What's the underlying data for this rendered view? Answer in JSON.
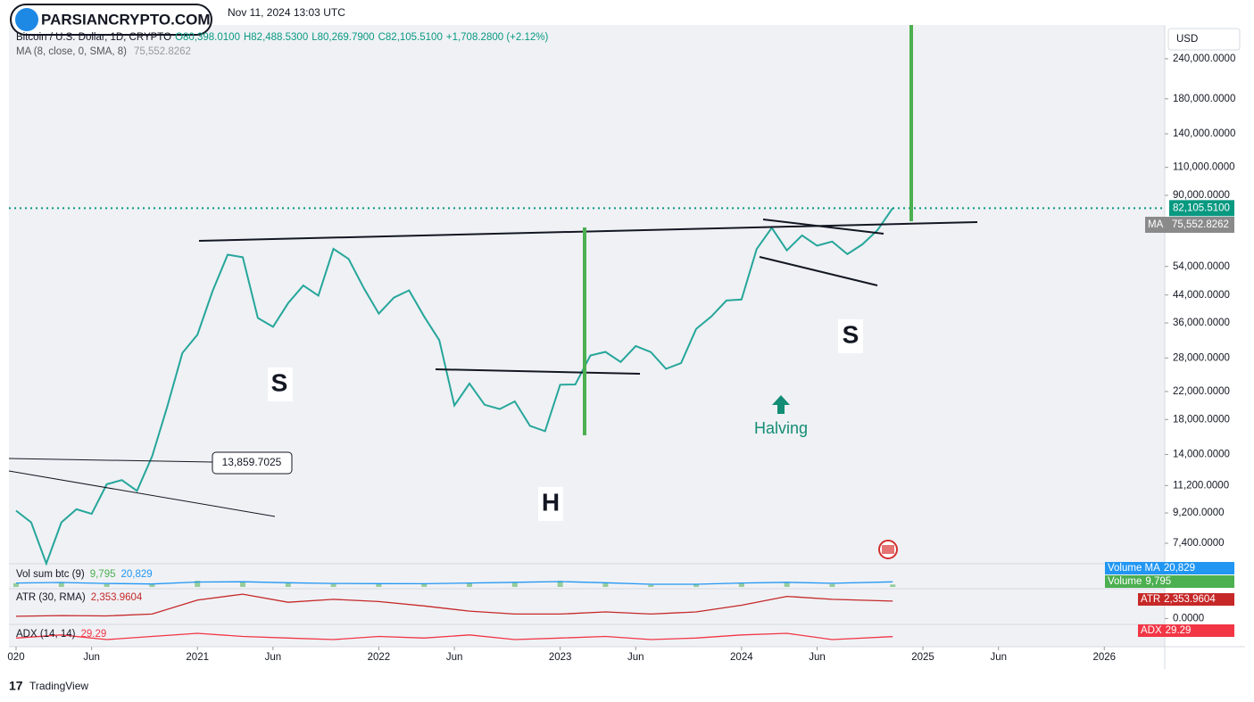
{
  "header": {
    "watermark": "PARSIANCRYPTO.COM",
    "timestamp": "Nov 11, 2024 13:03 UTC"
  },
  "chart_data": [
    {
      "type": "line",
      "log_scale": true,
      "grid": false,
      "currency": "USD",
      "ohlc": [
        "O80,398.0100",
        "H82,488.5300",
        "L80,269.7900",
        "C82,105.5100",
        "+1,708.2800 (+2.12%)"
      ],
      "indicator": {
        "name": "MA (8, close, 0, SMA, 8)",
        "short": "MA",
        "value_label": "75,552.8262"
      },
      "x": [
        "2020-01",
        "2020-02",
        "2020-03",
        "2020-04",
        "2020-05",
        "2020-06",
        "2020-07",
        "2020-08",
        "2020-09",
        "2020-10",
        "2020-11",
        "2020-12",
        "2021-01",
        "2021-02",
        "2021-03",
        "2021-04",
        "2021-05",
        "2021-06",
        "2021-07",
        "2021-08",
        "2021-09",
        "2021-10",
        "2021-11",
        "2021-12",
        "2022-01",
        "2022-02",
        "2022-03",
        "2022-04",
        "2022-05",
        "2022-06",
        "2022-07",
        "2022-08",
        "2022-09",
        "2022-10",
        "2022-11",
        "2022-12",
        "2023-01",
        "2023-02",
        "2023-03",
        "2023-04",
        "2023-05",
        "2023-06",
        "2023-07",
        "2023-08",
        "2023-09",
        "2023-10",
        "2023-11",
        "2023-12",
        "2024-01",
        "2024-02",
        "2024-03",
        "2024-04",
        "2024-05",
        "2024-06",
        "2024-07",
        "2024-08",
        "2024-09",
        "2024-10",
        "2024-11"
      ],
      "series": [
        {
          "name": "Bitcoin / U.S. Dollar, 1D, CRYPTO",
          "color": "#26a69a",
          "last_label": "82,105.5100",
          "values": [
            9350,
            8600,
            6400,
            8600,
            9450,
            9140,
            11300,
            11650,
            10780,
            13800,
            19700,
            29000,
            33100,
            45200,
            58800,
            57700,
            37300,
            35000,
            41500,
            47100,
            43800,
            61300,
            57000,
            46300,
            38500,
            43200,
            45500,
            37700,
            31800,
            19900,
            23300,
            20000,
            19400,
            20500,
            17200,
            16550,
            23100,
            23150,
            28500,
            29250,
            27200,
            30500,
            29200,
            25900,
            27000,
            34500,
            37700,
            42300,
            42600,
            61200,
            71300,
            60600,
            67500,
            62700,
            64600,
            59000,
            63300,
            70200,
            82105.51
          ]
        }
      ],
      "xlim": [
        "2020-01",
        "2026-05"
      ],
      "xticks": [
        {
          "value": "2020-01",
          "label": "020"
        },
        {
          "value": "2020-06",
          "label": "Jun"
        },
        {
          "value": "2021-01",
          "label": "2021"
        },
        {
          "value": "2021-06",
          "label": "Jun"
        },
        {
          "value": "2022-01",
          "label": "2022"
        },
        {
          "value": "2022-06",
          "label": "Jun"
        },
        {
          "value": "2023-01",
          "label": "2023"
        },
        {
          "value": "2023-06",
          "label": "Jun"
        },
        {
          "value": "2024-01",
          "label": "2024"
        },
        {
          "value": "2024-06",
          "label": "Jun"
        },
        {
          "value": "2025-01",
          "label": "2025"
        },
        {
          "value": "2025-06",
          "label": "Jun"
        },
        {
          "value": "2026-01",
          "label": "2026"
        }
      ],
      "ylim": [
        6470,
        302000
      ],
      "yticks": [
        {
          "value": 240000,
          "label": "240,000.0000"
        },
        {
          "value": 180000,
          "label": "180,000.0000"
        },
        {
          "value": 140000,
          "label": "140,000.0000"
        },
        {
          "value": 110000,
          "label": "110,000.0000"
        },
        {
          "value": 90000,
          "label": "90,000.0000"
        },
        {
          "value": 54000,
          "label": "54,000.0000"
        },
        {
          "value": 44000,
          "label": "44,000.0000"
        },
        {
          "value": 36000,
          "label": "36,000.0000"
        },
        {
          "value": 28000,
          "label": "28,000.0000"
        },
        {
          "value": 22000,
          "label": "22,000.0000"
        },
        {
          "value": 18000,
          "label": "18,000.0000"
        },
        {
          "value": 14000,
          "label": "14,000.0000"
        },
        {
          "value": 11200,
          "label": "11,200.0000"
        },
        {
          "value": 9200,
          "label": "9,200.0000"
        },
        {
          "value": 7400,
          "label": "7,400.0000"
        }
      ]
    },
    {
      "type": "bar",
      "name": "Vol sum btc (9)",
      "x": [
        "2020-01",
        "2020-04",
        "2020-07",
        "2020-10",
        "2021-01",
        "2021-04",
        "2021-07",
        "2021-10",
        "2022-01",
        "2022-04",
        "2022-07",
        "2022-10",
        "2023-01",
        "2023-04",
        "2023-07",
        "2023-10",
        "2024-01",
        "2024-04",
        "2024-07",
        "2024-11"
      ],
      "series": [
        {
          "name": "Volume",
          "type": "bar",
          "color": "#4caf50",
          "last_label": "9,795",
          "values": [
            15000,
            20000,
            12000,
            10000,
            25000,
            22000,
            15000,
            12000,
            14000,
            12000,
            18000,
            20000,
            25000,
            15000,
            8000,
            10000,
            18000,
            20000,
            12000,
            9795
          ]
        },
        {
          "name": "Volume MA",
          "type": "line",
          "color": "#2196f3",
          "last_label": "20,829",
          "values": [
            16000,
            18000,
            14000,
            12000,
            20000,
            21000,
            17000,
            14000,
            13500,
            13000,
            16000,
            19000,
            22000,
            17000,
            11000,
            11000,
            16000,
            19000,
            15000,
            20829
          ]
        }
      ],
      "ylim": [
        0,
        80000
      ]
    },
    {
      "type": "line",
      "name": "ATR (30, RMA)",
      "x": [
        "2020-01",
        "2020-04",
        "2020-07",
        "2020-10",
        "2021-01",
        "2021-04",
        "2021-07",
        "2021-10",
        "2022-01",
        "2022-04",
        "2022-07",
        "2022-10",
        "2023-01",
        "2023-04",
        "2023-07",
        "2023-10",
        "2024-01",
        "2024-04",
        "2024-07",
        "2024-11"
      ],
      "series": [
        {
          "name": "ATR",
          "color": "#c62828",
          "last_label": "2,353.9604",
          "values": [
            300,
            400,
            350,
            600,
            2500,
            3300,
            2200,
            2600,
            2300,
            1700,
            1000,
            600,
            600,
            900,
            600,
            900,
            1800,
            3000,
            2600,
            2353.9604
          ]
        }
      ],
      "ylim": [
        -800,
        3800
      ],
      "yticks": [
        {
          "value": 0,
          "label": "0.0000"
        }
      ]
    },
    {
      "type": "line",
      "name": "ADX (14, 14)",
      "x": [
        "2020-01",
        "2020-04",
        "2020-07",
        "2020-10",
        "2021-01",
        "2021-04",
        "2021-07",
        "2021-10",
        "2022-01",
        "2022-04",
        "2022-07",
        "2022-10",
        "2023-01",
        "2023-04",
        "2023-07",
        "2023-10",
        "2024-01",
        "2024-04",
        "2024-07",
        "2024-11"
      ],
      "series": [
        {
          "name": "ADX",
          "color": "#f23645",
          "last_label": "29.29",
          "values": [
            25,
            35,
            20,
            30,
            40,
            30,
            25,
            20,
            30,
            25,
            35,
            20,
            25,
            30,
            20,
            25,
            35,
            40,
            20,
            29.29
          ]
        }
      ],
      "ylim": [
        0,
        60
      ]
    }
  ],
  "annotations": [
    "S",
    "H",
    "S",
    "Halving",
    "13,859.7025"
  ],
  "footer": "TradingView"
}
